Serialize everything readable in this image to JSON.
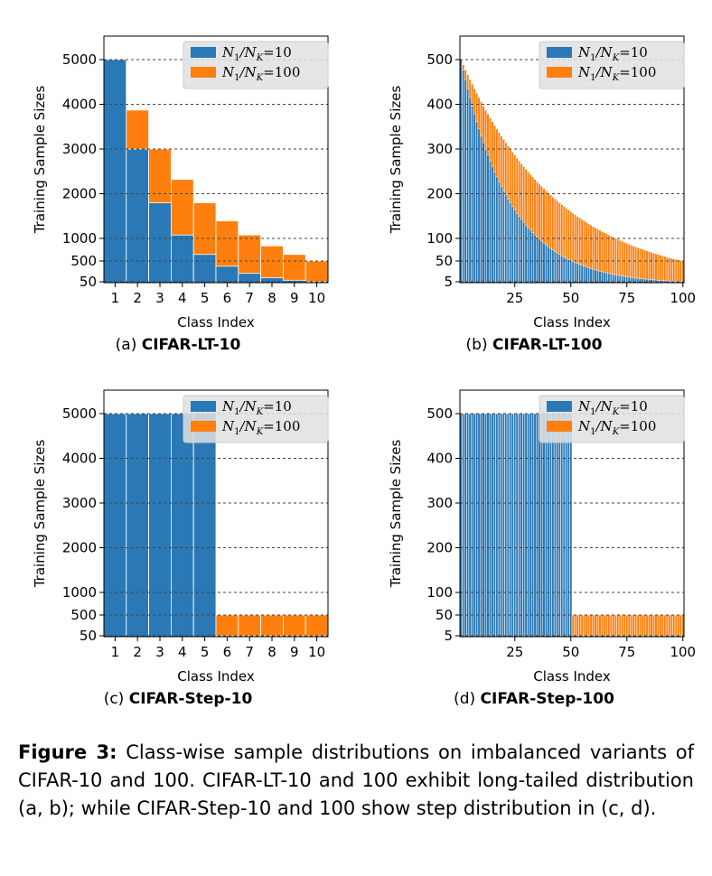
{
  "colors": {
    "blue": "#2a78b5",
    "orange": "#ff7f0e",
    "grid": "#444444",
    "legend_bg": "#e0e0e0"
  },
  "axis_common": {
    "ylabel": "Training Sample Sizes",
    "xlabel": "Class Index"
  },
  "legend": {
    "blue_label_main": "N",
    "blue_label_tail": "=10",
    "orange_label_tail": "=100"
  },
  "chart_data": [
    {
      "type": "bar",
      "panel": "a",
      "caption_prefix": "(a) ",
      "caption_name": "CIFAR-LT-10",
      "xlabel": "Class Index",
      "ylabel": "Training Sample Sizes",
      "categories": [
        "1",
        "2",
        "3",
        "4",
        "5",
        "6",
        "7",
        "8",
        "9",
        "10"
      ],
      "x_ticks": [
        "1",
        "2",
        "3",
        "4",
        "5",
        "6",
        "7",
        "8",
        "9",
        "10"
      ],
      "y_ticks": [
        "5000",
        "4000",
        "3000",
        "2000",
        "1000",
        "500",
        "50"
      ],
      "legend_position": "top-right",
      "series": [
        {
          "name": "N1/NK = 10",
          "values": [
            5000,
            3871,
            2997,
            2320,
            1796,
            1391,
            1077,
            834,
            645,
            500
          ]
        },
        {
          "name": "N1/NK = 100",
          "values": [
            5000,
            2997,
            1796,
            1077,
            645,
            387,
            232,
            139,
            83,
            50
          ]
        }
      ]
    },
    {
      "type": "bar",
      "panel": "b",
      "caption_prefix": "(b) ",
      "caption_name": "CIFAR-LT-100",
      "xlabel": "Class Index",
      "ylabel": "Training Sample Sizes",
      "x_ticks": [
        "25",
        "50",
        "75",
        "100"
      ],
      "y_ticks": [
        "500",
        "400",
        "300",
        "200",
        "100",
        "50",
        "5"
      ],
      "legend_position": "top-right",
      "num_classes": 100,
      "series": [
        {
          "name": "N1/NK = 10",
          "head": 500,
          "tail": 50,
          "distribution": "exponential"
        },
        {
          "name": "N1/NK = 100",
          "head": 500,
          "tail": 5,
          "distribution": "exponential"
        }
      ]
    },
    {
      "type": "bar",
      "panel": "c",
      "caption_prefix": "(c) ",
      "caption_name": "CIFAR-Step-10",
      "xlabel": "Class Index",
      "ylabel": "Training Sample Sizes",
      "categories": [
        "1",
        "2",
        "3",
        "4",
        "5",
        "6",
        "7",
        "8",
        "9",
        "10"
      ],
      "x_ticks": [
        "1",
        "2",
        "3",
        "4",
        "5",
        "6",
        "7",
        "8",
        "9",
        "10"
      ],
      "y_ticks": [
        "5000",
        "4000",
        "3000",
        "2000",
        "1000",
        "500",
        "50"
      ],
      "legend_position": "top-right",
      "series": [
        {
          "name": "N1/NK = 10",
          "values": [
            5000,
            5000,
            5000,
            5000,
            5000,
            500,
            500,
            500,
            500,
            500
          ]
        },
        {
          "name": "N1/NK = 100",
          "values": [
            5000,
            5000,
            5000,
            5000,
            5000,
            50,
            50,
            50,
            50,
            50
          ]
        }
      ]
    },
    {
      "type": "bar",
      "panel": "d",
      "caption_prefix": "(d) ",
      "caption_name": "CIFAR-Step-100",
      "xlabel": "Class Index",
      "ylabel": "Training Sample Sizes",
      "x_ticks": [
        "25",
        "50",
        "75",
        "100"
      ],
      "y_ticks": [
        "500",
        "400",
        "300",
        "200",
        "100",
        "50",
        "5"
      ],
      "legend_position": "top-right",
      "num_classes": 100,
      "series": [
        {
          "name": "N1/NK = 10",
          "head": 500,
          "tail": 50,
          "distribution": "step",
          "step_at": 50
        },
        {
          "name": "N1/NK = 100",
          "head": 500,
          "tail": 5,
          "distribution": "step",
          "step_at": 50
        }
      ]
    }
  ],
  "figure_caption": {
    "label": "Figure 3:",
    "text": " Class-wise sample distributions on imbalanced variants of CIFAR-10 and 100. CIFAR-LT-10 and 100 exhibit long-tailed distribution (a, b); while CIFAR-Step-10 and 100 show step distribution in (c, d)."
  }
}
